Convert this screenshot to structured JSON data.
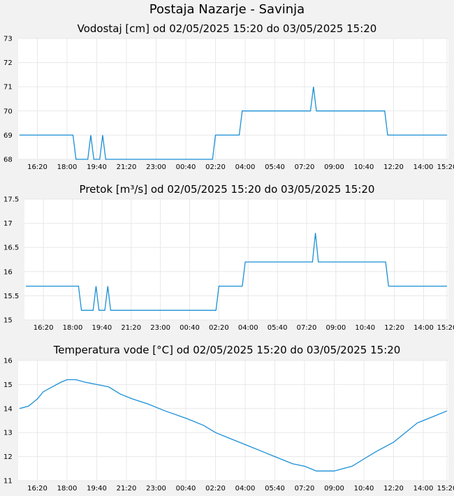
{
  "title": "Postaja Nazarje - Savinja",
  "chart_data": [
    {
      "type": "line",
      "title": "Vodostaj [cm] od 02/05/2025 15:20 do 03/05/2025 15:20",
      "x_range": [
        "15:20",
        "15:20"
      ],
      "xticks": [
        "16:20",
        "18:00",
        "19:40",
        "21:20",
        "23:00",
        "00:40",
        "02:20",
        "04:00",
        "05:40",
        "07:20",
        "09:00",
        "10:40",
        "12:20",
        "14:00",
        "15:20"
      ],
      "yticks": [
        "68",
        "69",
        "70",
        "71",
        "72",
        "73"
      ],
      "ylim": [
        68,
        73
      ],
      "grid": true,
      "series": [
        {
          "values": [
            [
              "15:20",
              69
            ],
            [
              "18:20",
              69
            ],
            [
              "18:30",
              68
            ],
            [
              "19:10",
              68
            ],
            [
              "19:20",
              69
            ],
            [
              "19:30",
              68
            ],
            [
              "19:50",
              68
            ],
            [
              "20:00",
              69
            ],
            [
              "20:10",
              68
            ],
            [
              "02:10",
              68
            ],
            [
              "02:20",
              69
            ],
            [
              "03:40",
              69
            ],
            [
              "03:50",
              70
            ],
            [
              "07:40",
              70
            ],
            [
              "07:50",
              71
            ],
            [
              "08:00",
              70
            ],
            [
              "11:50",
              70
            ],
            [
              "12:00",
              69
            ],
            [
              "15:20",
              69
            ]
          ]
        }
      ]
    },
    {
      "type": "line",
      "title": "Pretok [m³/s] od 02/05/2025 15:20 do 03/05/2025 15:20",
      "x_range": [
        "15:20",
        "15:20"
      ],
      "xticks": [
        "16:20",
        "18:00",
        "19:40",
        "21:20",
        "23:00",
        "00:40",
        "02:20",
        "04:00",
        "05:40",
        "07:20",
        "09:00",
        "10:40",
        "12:20",
        "14:00",
        "15:20"
      ],
      "yticks": [
        "15",
        "15.5",
        "16",
        "16.5",
        "17",
        "17.5"
      ],
      "ylim": [
        15,
        17.5
      ],
      "grid": true,
      "series": [
        {
          "values": [
            [
              "15:20",
              15.7
            ],
            [
              "18:20",
              15.7
            ],
            [
              "18:30",
              15.2
            ],
            [
              "19:10",
              15.2
            ],
            [
              "19:20",
              15.7
            ],
            [
              "19:30",
              15.2
            ],
            [
              "19:50",
              15.2
            ],
            [
              "20:00",
              15.7
            ],
            [
              "20:10",
              15.2
            ],
            [
              "02:10",
              15.2
            ],
            [
              "02:20",
              15.7
            ],
            [
              "03:40",
              15.7
            ],
            [
              "03:50",
              16.2
            ],
            [
              "07:40",
              16.2
            ],
            [
              "07:50",
              16.8
            ],
            [
              "08:00",
              16.2
            ],
            [
              "11:50",
              16.2
            ],
            [
              "12:00",
              15.7
            ],
            [
              "15:20",
              15.7
            ]
          ]
        }
      ]
    },
    {
      "type": "line",
      "title": "Temperatura vode [°C] od 02/05/2025 15:20 do 03/05/2025 15:20",
      "x_range": [
        "15:20",
        "15:20"
      ],
      "xticks": [
        "16:20",
        "18:00",
        "19:40",
        "21:20",
        "23:00",
        "00:40",
        "02:20",
        "04:00",
        "05:40",
        "07:20",
        "09:00",
        "10:40",
        "12:20",
        "14:00",
        "15:20"
      ],
      "yticks": [
        "11",
        "12",
        "13",
        "14",
        "15",
        "16"
      ],
      "ylim": [
        11,
        16
      ],
      "grid": true,
      "series": [
        {
          "values": [
            [
              "15:20",
              14.0
            ],
            [
              "15:50",
              14.1
            ],
            [
              "16:20",
              14.4
            ],
            [
              "16:40",
              14.7
            ],
            [
              "17:10",
              14.9
            ],
            [
              "17:40",
              15.1
            ],
            [
              "18:00",
              15.2
            ],
            [
              "18:30",
              15.2
            ],
            [
              "19:00",
              15.1
            ],
            [
              "19:40",
              15.0
            ],
            [
              "20:20",
              14.9
            ],
            [
              "21:00",
              14.6
            ],
            [
              "21:40",
              14.4
            ],
            [
              "22:30",
              14.2
            ],
            [
              "23:30",
              13.9
            ],
            [
              "00:40",
              13.6
            ],
            [
              "01:40",
              13.3
            ],
            [
              "02:20",
              13.0
            ],
            [
              "03:00",
              12.8
            ],
            [
              "04:00",
              12.5
            ],
            [
              "05:00",
              12.2
            ],
            [
              "05:40",
              12.0
            ],
            [
              "06:40",
              11.7
            ],
            [
              "07:20",
              11.6
            ],
            [
              "08:00",
              11.4
            ],
            [
              "09:00",
              11.4
            ],
            [
              "09:30",
              11.5
            ],
            [
              "10:00",
              11.6
            ],
            [
              "10:40",
              11.9
            ],
            [
              "11:20",
              12.2
            ],
            [
              "12:20",
              12.6
            ],
            [
              "13:00",
              13.0
            ],
            [
              "13:40",
              13.4
            ],
            [
              "14:00",
              13.5
            ],
            [
              "14:40",
              13.7
            ],
            [
              "15:20",
              13.9
            ]
          ]
        }
      ]
    }
  ]
}
